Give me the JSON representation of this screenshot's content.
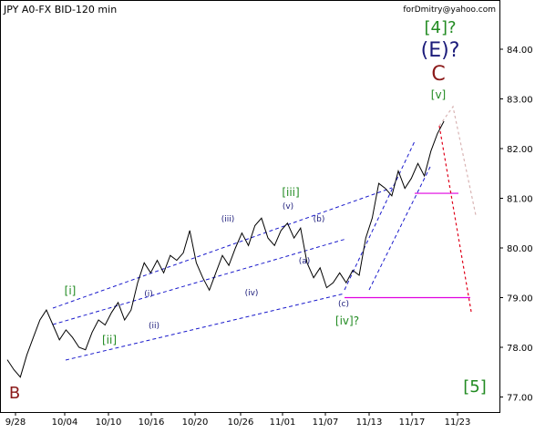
{
  "chart_data": {
    "type": "line",
    "title": "JPY A0-FX BID-120 min",
    "watermark": "forDmitry@yahoo.com",
    "ylim": [
      76.5,
      85.0
    ],
    "y_ticks": [
      "77.00",
      "78.00",
      "79.00",
      "80.00",
      "81.00",
      "82.00",
      "83.00",
      "84.00"
    ],
    "x_ticks": [
      "9/28",
      "10/04",
      "10/10",
      "10/16",
      "10/20",
      "10/26",
      "11/01",
      "11/07",
      "11/13",
      "11/17",
      "11/23"
    ],
    "series": [
      {
        "values": [
          [
            0,
            77.75
          ],
          [
            1,
            77.55
          ],
          [
            2,
            77.4
          ],
          [
            3,
            77.85
          ],
          [
            4,
            78.2
          ],
          [
            5,
            78.55
          ],
          [
            6,
            78.75
          ],
          [
            7,
            78.45
          ],
          [
            8,
            78.15
          ],
          [
            9,
            78.35
          ],
          [
            10,
            78.2
          ],
          [
            11,
            78.0
          ],
          [
            12,
            77.95
          ],
          [
            13,
            78.3
          ],
          [
            14,
            78.55
          ],
          [
            15,
            78.45
          ],
          [
            16,
            78.7
          ],
          [
            17,
            78.9
          ],
          [
            18,
            78.55
          ],
          [
            19,
            78.75
          ],
          [
            20,
            79.3
          ],
          [
            21,
            79.7
          ],
          [
            22,
            79.5
          ],
          [
            23,
            79.75
          ],
          [
            24,
            79.5
          ],
          [
            25,
            79.85
          ],
          [
            26,
            79.75
          ],
          [
            27,
            79.9
          ],
          [
            28,
            80.35
          ],
          [
            29,
            79.7
          ],
          [
            30,
            79.4
          ],
          [
            31,
            79.15
          ],
          [
            32,
            79.5
          ],
          [
            33,
            79.85
          ],
          [
            34,
            79.65
          ],
          [
            35,
            80.0
          ],
          [
            36,
            80.3
          ],
          [
            37,
            80.05
          ],
          [
            38,
            80.45
          ],
          [
            39,
            80.6
          ],
          [
            40,
            80.2
          ],
          [
            41,
            80.05
          ],
          [
            42,
            80.35
          ],
          [
            43,
            80.5
          ],
          [
            44,
            80.2
          ],
          [
            45,
            80.4
          ],
          [
            46,
            79.7
          ],
          [
            47,
            79.4
          ],
          [
            48,
            79.6
          ],
          [
            49,
            79.2
          ],
          [
            50,
            79.3
          ],
          [
            51,
            79.5
          ],
          [
            52,
            79.3
          ],
          [
            53,
            79.55
          ],
          [
            54,
            79.45
          ],
          [
            55,
            80.2
          ],
          [
            56,
            80.6
          ],
          [
            57,
            81.3
          ],
          [
            58,
            81.2
          ],
          [
            59,
            81.05
          ],
          [
            60,
            81.55
          ],
          [
            61,
            81.2
          ],
          [
            62,
            81.4
          ],
          [
            63,
            81.7
          ],
          [
            64,
            81.45
          ],
          [
            65,
            81.95
          ],
          [
            66,
            82.3
          ],
          [
            67,
            82.55
          ]
        ]
      }
    ],
    "wave_labels": [
      {
        "text": "[4]?",
        "color": "#228b22",
        "size": 18
      },
      {
        "text": "(E)?",
        "color": "#1b1b7a",
        "size": 22
      },
      {
        "text": "C",
        "color": "#8b1a1a",
        "size": 22
      },
      {
        "text": "[v]",
        "color": "#228b22",
        "size": 12
      },
      {
        "text": "[iii]",
        "color": "#228b22",
        "size": 12
      },
      {
        "text": "[i]",
        "color": "#228b22",
        "size": 12
      },
      {
        "text": "[ii]",
        "color": "#228b22",
        "size": 12
      },
      {
        "text": "[iv]?",
        "color": "#228b22",
        "size": 12
      },
      {
        "text": "[5]",
        "color": "#228b22",
        "size": 18
      },
      {
        "text": "B",
        "color": "#8b1a1a",
        "size": 18
      },
      {
        "text": "(iii)",
        "color": "#1b1b7a",
        "size": 9
      },
      {
        "text": "(v)",
        "color": "#1b1b7a",
        "size": 9
      },
      {
        "text": "(b)",
        "color": "#1b1b7a",
        "size": 9
      },
      {
        "text": "(a)",
        "color": "#1b1b7a",
        "size": 9
      },
      {
        "text": "(iv)",
        "color": "#1b1b7a",
        "size": 9
      },
      {
        "text": "(i)",
        "color": "#1b1b7a",
        "size": 9
      },
      {
        "text": "(ii)",
        "color": "#1b1b7a",
        "size": 9
      },
      {
        "text": "(c)",
        "color": "#1b1b7a",
        "size": 9
      }
    ],
    "horizontal_levels": [
      81.1,
      79.0
    ],
    "colors": {
      "price": "#000000",
      "channel": "#1a1acc",
      "levels": "#e000e0",
      "forecast_main": "#e0001a",
      "forecast_alt": "#d8b4b4",
      "axis": "#000000"
    }
  }
}
